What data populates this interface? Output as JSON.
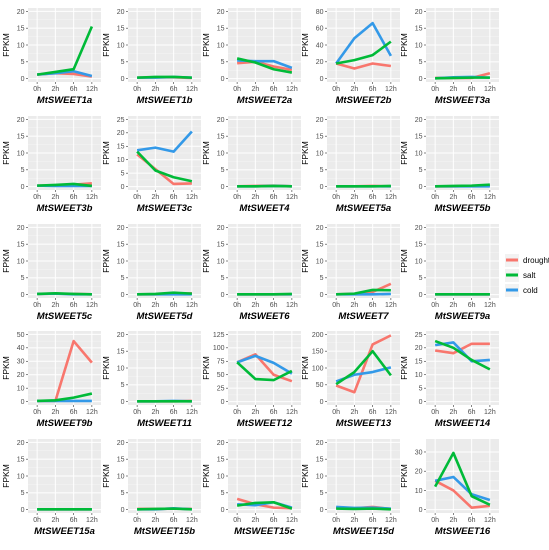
{
  "colors": {
    "drought": "#F8766D",
    "salt": "#00BA38",
    "cold": "#3399E8"
  },
  "chart_data": {
    "type": "line",
    "x_categories": [
      "0h",
      "2h",
      "6h",
      "12h"
    ],
    "ylabel": "FPKM",
    "grid": true,
    "legend": {
      "placement": "right",
      "entries": [
        {
          "name": "drought",
          "color": "#F8766D"
        },
        {
          "name": "salt",
          "color": "#00BA38"
        },
        {
          "name": "cold",
          "color": "#3399E8"
        }
      ]
    },
    "panels": [
      {
        "gene": "MtSWEET1a",
        "ylim": [
          0,
          20
        ],
        "yticks": [
          0,
          5,
          10,
          15,
          20
        ],
        "series": {
          "drought": [
            1.2,
            1.6,
            1.4,
            0.6
          ],
          "salt": [
            1.2,
            2,
            2.8,
            15.5
          ],
          "cold": [
            1.2,
            1.6,
            2.2,
            0.8
          ]
        }
      },
      {
        "gene": "MtSWEET1b",
        "ylim": [
          0,
          20
        ],
        "yticks": [
          0,
          5,
          10,
          15,
          20
        ],
        "series": {
          "drought": [
            0.3,
            0.4,
            0.4,
            0.2
          ],
          "salt": [
            0.3,
            0.5,
            0.5,
            0.3
          ],
          "cold": [
            0.3,
            0.3,
            0.5,
            0.3
          ]
        }
      },
      {
        "gene": "MtSWEET2a",
        "ylim": [
          0,
          20
        ],
        "yticks": [
          0,
          5,
          10,
          15,
          20
        ],
        "series": {
          "drought": [
            4.6,
            5,
            3.6,
            2.6
          ],
          "salt": [
            6,
            4.8,
            2.8,
            1.8
          ],
          "cold": [
            5.4,
            5.2,
            5.2,
            3.2
          ]
        }
      },
      {
        "gene": "MtSWEET2b",
        "ylim": [
          0,
          80
        ],
        "yticks": [
          0,
          20,
          40,
          60,
          80
        ],
        "series": {
          "drought": [
            18,
            12,
            18,
            15
          ],
          "salt": [
            18,
            22,
            28,
            44
          ],
          "cold": [
            18,
            48,
            66,
            27
          ]
        }
      },
      {
        "gene": "MtSWEET3a",
        "ylim": [
          0,
          20
        ],
        "yticks": [
          0,
          5,
          10,
          15,
          20
        ],
        "series": {
          "drought": [
            0.2,
            0.2,
            0.2,
            1.6
          ],
          "salt": [
            0.1,
            0.2,
            0.3,
            0.3
          ],
          "cold": [
            0.1,
            0.4,
            0.5,
            0.3
          ]
        }
      },
      {
        "gene": "MtSWEET3b",
        "ylim": [
          0,
          20
        ],
        "yticks": [
          0,
          5,
          10,
          15,
          20
        ],
        "series": {
          "drought": [
            0.3,
            0.4,
            0.6,
            1
          ],
          "salt": [
            0.3,
            0.5,
            0.8,
            0.2
          ],
          "cold": [
            0.3,
            0.2,
            0.2,
            0.2
          ]
        }
      },
      {
        "gene": "MtSWEET3c",
        "ylim": [
          0,
          25
        ],
        "yticks": [
          0,
          5,
          10,
          15,
          20,
          25
        ],
        "series": {
          "drought": [
            12,
            6.5,
            1,
            1.2
          ],
          "salt": [
            13,
            6,
            3.5,
            2
          ],
          "cold": [
            13.5,
            14.5,
            13,
            20.5
          ]
        }
      },
      {
        "gene": "MtSWEET4",
        "ylim": [
          0,
          20
        ],
        "yticks": [
          0,
          5,
          10,
          15,
          20
        ],
        "series": {
          "drought": [
            0.1,
            0.2,
            0.3,
            0.1
          ],
          "salt": [
            0.1,
            0.1,
            0.2,
            0.1
          ],
          "cold": [
            0.1,
            0.1,
            0.2,
            0.1
          ]
        }
      },
      {
        "gene": "MtSWEET5a",
        "ylim": [
          0,
          20
        ],
        "yticks": [
          0,
          5,
          10,
          15,
          20
        ],
        "series": {
          "drought": [
            0.1,
            0.1,
            0.2,
            0.1
          ],
          "salt": [
            0.1,
            0.1,
            0.1,
            0.2
          ],
          "cold": [
            0.1,
            0.1,
            0.1,
            0.1
          ]
        }
      },
      {
        "gene": "MtSWEET5b",
        "ylim": [
          0,
          20
        ],
        "yticks": [
          0,
          5,
          10,
          15,
          20
        ],
        "series": {
          "drought": [
            0.1,
            0.1,
            0.2,
            0.3
          ],
          "salt": [
            0.1,
            0.2,
            0.3,
            0.6
          ],
          "cold": [
            0.1,
            0.1,
            0.1,
            0.1
          ]
        }
      },
      {
        "gene": "MtSWEET5c",
        "ylim": [
          0,
          20
        ],
        "yticks": [
          0,
          5,
          10,
          15,
          20
        ],
        "series": {
          "drought": [
            0.2,
            0.3,
            0.2,
            0.1
          ],
          "salt": [
            0.2,
            0.4,
            0.2,
            0.1
          ],
          "cold": [
            0.2,
            0.3,
            0.1,
            0.1
          ]
        }
      },
      {
        "gene": "MtSWEET5d",
        "ylim": [
          0,
          20
        ],
        "yticks": [
          0,
          5,
          10,
          15,
          20
        ],
        "series": {
          "drought": [
            0.1,
            0.1,
            0.2,
            0.4
          ],
          "salt": [
            0.1,
            0.2,
            0.6,
            0.3
          ],
          "cold": [
            0.1,
            0.1,
            0.1,
            0.1
          ]
        }
      },
      {
        "gene": "MtSWEET6",
        "ylim": [
          0,
          20
        ],
        "yticks": [
          0,
          5,
          10,
          15,
          20
        ],
        "series": {
          "drought": [
            0.1,
            0.1,
            0.1,
            0.1
          ],
          "salt": [
            0.1,
            0.1,
            0.1,
            0.2
          ],
          "cold": [
            0.1,
            0.1,
            0.1,
            0.1
          ]
        }
      },
      {
        "gene": "MtSWEET7",
        "ylim": [
          0,
          20
        ],
        "yticks": [
          0,
          5,
          10,
          15,
          20
        ],
        "series": {
          "drought": [
            0.1,
            0.2,
            0.8,
            3.2
          ],
          "salt": [
            0.1,
            0.3,
            1.4,
            1.3
          ],
          "cold": [
            0.1,
            0.1,
            0.1,
            0.2
          ]
        }
      },
      {
        "gene": "MtSWEET9a",
        "ylim": [
          0,
          20
        ],
        "yticks": [
          0,
          5,
          10,
          15,
          20
        ],
        "series": {
          "drought": [
            0.1,
            0.1,
            0.1,
            0.1
          ],
          "salt": [
            0.1,
            0.1,
            0.1,
            0.1
          ],
          "cold": [
            0.1,
            0.1,
            0.1,
            0.1
          ]
        }
      },
      {
        "gene": "MtSWEET9b",
        "ylim": [
          0,
          50
        ],
        "yticks": [
          0,
          10,
          20,
          30,
          40,
          50
        ],
        "series": {
          "drought": [
            0.5,
            0.5,
            45,
            29
          ],
          "salt": [
            0.5,
            1,
            3,
            6
          ],
          "cold": [
            0.5,
            0.5,
            0.5,
            0.5
          ]
        }
      },
      {
        "gene": "MtSWEET11",
        "ylim": [
          0,
          20
        ],
        "yticks": [
          0,
          5,
          10,
          15,
          20
        ],
        "series": {
          "drought": [
            0.1,
            0.1,
            0.1,
            0.2
          ],
          "salt": [
            0.1,
            0.1,
            0.1,
            0.1
          ],
          "cold": [
            0.1,
            0.1,
            0.2,
            0.1
          ]
        }
      },
      {
        "gene": "MtSWEET12",
        "ylim": [
          0,
          125
        ],
        "yticks": [
          0,
          25,
          50,
          75,
          100,
          125
        ],
        "series": {
          "drought": [
            73,
            88,
            50,
            38
          ],
          "salt": [
            73,
            42,
            40,
            57
          ],
          "cold": [
            73,
            85,
            72,
            52
          ]
        }
      },
      {
        "gene": "MtSWEET13",
        "ylim": [
          0,
          200
        ],
        "yticks": [
          0,
          50,
          100,
          150,
          200
        ],
        "series": {
          "drought": [
            48,
            28,
            170,
            197
          ],
          "salt": [
            52,
            88,
            150,
            78
          ],
          "cold": [
            60,
            80,
            88,
            102
          ]
        }
      },
      {
        "gene": "MtSWEET14",
        "ylim": [
          0,
          25
        ],
        "yticks": [
          0,
          5,
          10,
          15,
          20,
          25
        ],
        "series": {
          "drought": [
            19,
            18,
            21.5,
            21.5
          ],
          "salt": [
            22.5,
            20,
            15.5,
            12
          ],
          "cold": [
            21,
            22,
            15,
            15.5
          ]
        }
      },
      {
        "gene": "MtSWEET15a",
        "ylim": [
          0,
          20
        ],
        "yticks": [
          0,
          5,
          10,
          15,
          20
        ],
        "series": {
          "drought": [
            0.1,
            0.1,
            0.1,
            0.1
          ],
          "salt": [
            0.1,
            0.1,
            0.1,
            0.1
          ],
          "cold": [
            0.1,
            0.1,
            0.1,
            0.1
          ]
        }
      },
      {
        "gene": "MtSWEET15b",
        "ylim": [
          0,
          20
        ],
        "yticks": [
          0,
          5,
          10,
          15,
          20
        ],
        "series": {
          "drought": [
            0.2,
            0.2,
            0.3,
            0.2
          ],
          "salt": [
            0.1,
            0.2,
            0.3,
            0.1
          ],
          "cold": [
            0.1,
            0.1,
            0.4,
            0.1
          ]
        }
      },
      {
        "gene": "MtSWEET15c",
        "ylim": [
          0,
          20
        ],
        "yticks": [
          0,
          5,
          10,
          15,
          20
        ],
        "series": {
          "drought": [
            3.2,
            1.6,
            0.6,
            0.4
          ],
          "salt": [
            1.2,
            2,
            2.2,
            0.3
          ],
          "cold": [
            1.6,
            1.3,
            2.2,
            0.6
          ]
        }
      },
      {
        "gene": "MtSWEET15d",
        "ylim": [
          0,
          20
        ],
        "yticks": [
          0,
          5,
          10,
          15,
          20
        ],
        "series": {
          "drought": [
            0.6,
            0.4,
            0.8,
            0.2
          ],
          "salt": [
            0.3,
            0.2,
            0.3,
            0.1
          ],
          "cold": [
            0.8,
            0.5,
            0.6,
            0.3
          ]
        }
      },
      {
        "gene": "MtSWEET16",
        "ylim": [
          0,
          35
        ],
        "yticks": [
          0,
          10,
          20,
          30
        ],
        "series": {
          "drought": [
            15,
            10,
            1,
            2
          ],
          "salt": [
            12,
            29.5,
            7,
            2.5
          ],
          "cold": [
            15,
            17,
            8,
            5
          ]
        }
      }
    ]
  }
}
